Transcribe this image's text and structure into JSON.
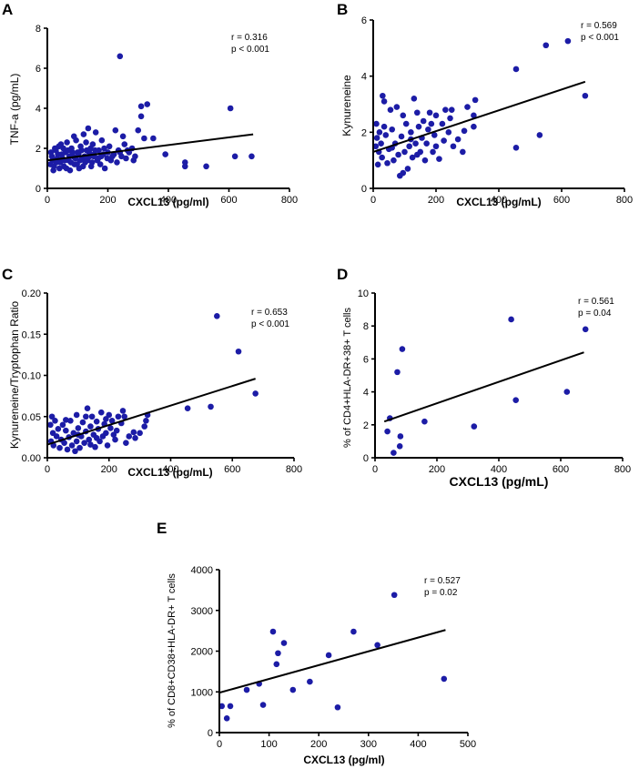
{
  "chart_data": [
    {
      "id": "A",
      "type": "scatter",
      "letter": "A",
      "xlabel": "CXCL13 (pg/ml)",
      "ylabel": "TNF-a (pg/mL)",
      "xlim": [
        0,
        800
      ],
      "ylim": [
        0,
        8
      ],
      "xticks": [
        "0",
        "200",
        "400",
        "600",
        "800"
      ],
      "yticks": [
        "0",
        "2",
        "4",
        "6",
        "8"
      ],
      "xtick_values": [
        0,
        200,
        400,
        600,
        800
      ],
      "ytick_values": [
        0,
        2,
        4,
        6,
        8
      ],
      "stats": {
        "r": "r = 0.316",
        "p": "p < 0.001"
      },
      "fit": {
        "x": [
          0,
          680
        ],
        "y": [
          1.4,
          2.7
        ]
      },
      "points": [
        [
          240,
          6.6
        ],
        [
          330,
          4.2
        ],
        [
          310,
          4.1
        ],
        [
          605,
          4.0
        ],
        [
          310,
          3.6
        ],
        [
          350,
          2.5
        ],
        [
          300,
          2.9
        ],
        [
          250,
          2.6
        ],
        [
          320,
          2.5
        ],
        [
          455,
          1.3
        ],
        [
          455,
          1.1
        ],
        [
          525,
          1.1
        ],
        [
          620,
          1.6
        ],
        [
          675,
          1.6
        ],
        [
          390,
          1.7
        ],
        [
          10,
          1.2
        ],
        [
          15,
          1.6
        ],
        [
          20,
          0.9
        ],
        [
          25,
          2.0
        ],
        [
          30,
          1.3
        ],
        [
          35,
          1.7
        ],
        [
          40,
          1.0
        ],
        [
          45,
          2.2
        ],
        [
          50,
          1.5
        ],
        [
          55,
          1.1
        ],
        [
          60,
          1.8
        ],
        [
          65,
          2.3
        ],
        [
          70,
          1.4
        ],
        [
          75,
          0.9
        ],
        [
          80,
          2.0
        ],
        [
          85,
          1.6
        ],
        [
          90,
          1.2
        ],
        [
          95,
          2.4
        ],
        [
          100,
          1.8
        ],
        [
          105,
          1.0
        ],
        [
          110,
          2.1
        ],
        [
          115,
          1.5
        ],
        [
          120,
          2.7
        ],
        [
          125,
          1.3
        ],
        [
          130,
          1.9
        ],
        [
          135,
          3.0
        ],
        [
          140,
          1.6
        ],
        [
          145,
          1.1
        ],
        [
          150,
          2.2
        ],
        [
          155,
          1.7
        ],
        [
          160,
          2.8
        ],
        [
          165,
          1.4
        ],
        [
          170,
          1.9
        ],
        [
          175,
          1.2
        ],
        [
          180,
          2.4
        ],
        [
          185,
          1.7
        ],
        [
          190,
          1.0
        ],
        [
          200,
          1.8
        ],
        [
          205,
          2.1
        ],
        [
          210,
          1.4
        ],
        [
          220,
          1.7
        ],
        [
          225,
          2.9
        ],
        [
          230,
          1.3
        ],
        [
          235,
          1.9
        ],
        [
          245,
          1.6
        ],
        [
          255,
          2.2
        ],
        [
          260,
          1.5
        ],
        [
          270,
          1.8
        ],
        [
          280,
          2.0
        ],
        [
          290,
          1.6
        ],
        [
          12,
          1.8
        ],
        [
          18,
          1.4
        ],
        [
          22,
          1.1
        ],
        [
          28,
          1.9
        ],
        [
          33,
          1.5
        ],
        [
          38,
          2.1
        ],
        [
          43,
          1.3
        ],
        [
          48,
          1.7
        ],
        [
          53,
          2.0
        ],
        [
          58,
          1.4
        ],
        [
          63,
          1.0
        ],
        [
          68,
          1.9
        ],
        [
          73,
          1.6
        ],
        [
          78,
          1.3
        ],
        [
          83,
          1.8
        ],
        [
          88,
          2.6
        ],
        [
          93,
          1.5
        ],
        [
          98,
          1.2
        ],
        [
          103,
          1.7
        ],
        [
          108,
          1.4
        ],
        [
          113,
          1.9
        ],
        [
          118,
          1.1
        ],
        [
          123,
          1.6
        ],
        [
          128,
          2.3
        ],
        [
          133,
          1.4
        ],
        [
          138,
          1.8
        ],
        [
          143,
          2.0
        ],
        [
          148,
          1.3
        ],
        [
          153,
          1.6
        ],
        [
          158,
          1.9
        ],
        [
          168,
          1.5
        ],
        [
          178,
          1.6
        ],
        [
          188,
          2.0
        ],
        [
          198,
          1.5
        ],
        [
          215,
          1.6
        ],
        [
          240,
          1.8
        ],
        [
          265,
          1.9
        ],
        [
          285,
          1.4
        ]
      ]
    },
    {
      "id": "B",
      "type": "scatter",
      "letter": "B",
      "xlabel": "CXCL13 (pg/mL)",
      "ylabel": "Kynureneine",
      "xlim": [
        0,
        800
      ],
      "ylim": [
        0,
        6
      ],
      "xticks": [
        "0",
        "200",
        "400",
        "600",
        "800"
      ],
      "yticks": [
        "0",
        "2",
        "4",
        "6"
      ],
      "xtick_values": [
        0,
        200,
        400,
        600,
        800
      ],
      "ytick_values": [
        0,
        2,
        4,
        6
      ],
      "stats": {
        "r": "r = 0.569",
        "p": "p < 0.001"
      },
      "fit": {
        "x": [
          0,
          675
        ],
        "y": [
          1.3,
          3.8
        ]
      },
      "points": [
        [
          620,
          5.25
        ],
        [
          550,
          5.1
        ],
        [
          455,
          4.25
        ],
        [
          675,
          3.3
        ],
        [
          530,
          1.9
        ],
        [
          455,
          1.45
        ],
        [
          325,
          3.15
        ],
        [
          320,
          2.6
        ],
        [
          320,
          2.2
        ],
        [
          300,
          2.9
        ],
        [
          290,
          2.05
        ],
        [
          285,
          1.3
        ],
        [
          270,
          1.75
        ],
        [
          250,
          2.8
        ],
        [
          245,
          2.5
        ],
        [
          240,
          2.0
        ],
        [
          230,
          2.8
        ],
        [
          225,
          1.7
        ],
        [
          220,
          2.3
        ],
        [
          210,
          1.05
        ],
        [
          200,
          2.6
        ],
        [
          195,
          1.9
        ],
        [
          190,
          1.3
        ],
        [
          180,
          2.7
        ],
        [
          175,
          2.1
        ],
        [
          170,
          1.6
        ],
        [
          165,
          1.0
        ],
        [
          160,
          2.4
        ],
        [
          155,
          1.8
        ],
        [
          150,
          1.3
        ],
        [
          145,
          2.2
        ],
        [
          140,
          2.7
        ],
        [
          135,
          1.6
        ],
        [
          130,
          3.2
        ],
        [
          125,
          1.1
        ],
        [
          120,
          2.0
        ],
        [
          115,
          1.5
        ],
        [
          110,
          0.7
        ],
        [
          105,
          2.3
        ],
        [
          100,
          1.3
        ],
        [
          95,
          0.55
        ],
        [
          90,
          1.85
        ],
        [
          85,
          0.45
        ],
        [
          80,
          1.2
        ],
        [
          75,
          2.9
        ],
        [
          70,
          1.6
        ],
        [
          65,
          1.0
        ],
        [
          60,
          2.1
        ],
        [
          55,
          2.8
        ],
        [
          50,
          1.4
        ],
        [
          45,
          0.9
        ],
        [
          40,
          1.9
        ],
        [
          35,
          2.2
        ],
        [
          30,
          3.3
        ],
        [
          28,
          1.1
        ],
        [
          25,
          1.6
        ],
        [
          20,
          2.0
        ],
        [
          18,
          1.3
        ],
        [
          15,
          0.85
        ],
        [
          12,
          1.8
        ],
        [
          10,
          2.3
        ],
        [
          8,
          1.5
        ],
        [
          35,
          3.1
        ],
        [
          95,
          2.6
        ],
        [
          140,
          1.2
        ],
        [
          185,
          2.3
        ],
        [
          255,
          1.5
        ],
        [
          200,
          1.5
        ],
        [
          60,
          1.45
        ],
        [
          120,
          1.75
        ]
      ]
    },
    {
      "id": "C",
      "type": "scatter",
      "letter": "C",
      "xlabel": "CXCL13 (pg/mL)",
      "ylabel": "Kynureneine/Tryptophan Ratio",
      "xlim": [
        0,
        800
      ],
      "ylim": [
        0,
        0.2
      ],
      "xticks": [
        "0",
        "200",
        "400",
        "600",
        "800"
      ],
      "yticks": [
        "0.00",
        "0.05",
        "0.10",
        "0.15",
        "0.20"
      ],
      "xtick_values": [
        0,
        200,
        400,
        600,
        800
      ],
      "ytick_values": [
        0,
        0.05,
        0.1,
        0.15,
        0.2
      ],
      "stats": {
        "r": "r = 0.653",
        "p": "p < 0.001"
      },
      "fit": {
        "x": [
          0,
          675
        ],
        "y": [
          0.016,
          0.096
        ]
      },
      "points": [
        [
          550,
          0.172
        ],
        [
          620,
          0.129
        ],
        [
          675,
          0.078
        ],
        [
          530,
          0.062
        ],
        [
          455,
          0.06
        ],
        [
          325,
          0.052
        ],
        [
          320,
          0.045
        ],
        [
          315,
          0.038
        ],
        [
          300,
          0.03
        ],
        [
          285,
          0.024
        ],
        [
          280,
          0.031
        ],
        [
          265,
          0.026
        ],
        [
          255,
          0.018
        ],
        [
          250,
          0.05
        ],
        [
          245,
          0.057
        ],
        [
          240,
          0.042
        ],
        [
          230,
          0.05
        ],
        [
          225,
          0.033
        ],
        [
          220,
          0.022
        ],
        [
          210,
          0.045
        ],
        [
          205,
          0.036
        ],
        [
          200,
          0.052
        ],
        [
          195,
          0.015
        ],
        [
          190,
          0.03
        ],
        [
          185,
          0.041
        ],
        [
          180,
          0.026
        ],
        [
          175,
          0.055
        ],
        [
          170,
          0.02
        ],
        [
          165,
          0.035
        ],
        [
          160,
          0.044
        ],
        [
          155,
          0.013
        ],
        [
          150,
          0.028
        ],
        [
          145,
          0.05
        ],
        [
          140,
          0.038
        ],
        [
          135,
          0.022
        ],
        [
          130,
          0.06
        ],
        [
          125,
          0.032
        ],
        [
          120,
          0.018
        ],
        [
          115,
          0.043
        ],
        [
          110,
          0.026
        ],
        [
          105,
          0.012
        ],
        [
          100,
          0.036
        ],
        [
          95,
          0.02
        ],
        [
          90,
          0.008
        ],
        [
          85,
          0.03
        ],
        [
          80,
          0.015
        ],
        [
          75,
          0.045
        ],
        [
          70,
          0.025
        ],
        [
          65,
          0.01
        ],
        [
          60,
          0.033
        ],
        [
          55,
          0.018
        ],
        [
          50,
          0.04
        ],
        [
          45,
          0.022
        ],
        [
          40,
          0.012
        ],
        [
          35,
          0.035
        ],
        [
          30,
          0.026
        ],
        [
          25,
          0.045
        ],
        [
          20,
          0.015
        ],
        [
          18,
          0.03
        ],
        [
          15,
          0.05
        ],
        [
          12,
          0.02
        ],
        [
          10,
          0.04
        ],
        [
          95,
          0.052
        ],
        [
          125,
          0.05
        ],
        [
          160,
          0.024
        ],
        [
          190,
          0.047
        ],
        [
          215,
          0.028
        ],
        [
          60,
          0.046
        ],
        [
          100,
          0.028
        ],
        [
          140,
          0.016
        ]
      ]
    },
    {
      "id": "D",
      "type": "scatter",
      "letter": "D",
      "xlabel": "CXCL13 (pg/mL)",
      "ylabel": "% of CD4+HLA-DR+38+ T cells",
      "xlim": [
        0,
        800
      ],
      "ylim": [
        0,
        10
      ],
      "xticks": [
        "0",
        "200",
        "400",
        "600",
        "800"
      ],
      "yticks": [
        "0",
        "2",
        "4",
        "6",
        "8",
        "10"
      ],
      "xtick_values": [
        0,
        200,
        400,
        600,
        800
      ],
      "ytick_values": [
        0,
        2,
        4,
        6,
        8,
        10
      ],
      "stats": {
        "r": "r = 0.561",
        "p": "p = 0.04"
      },
      "fit": {
        "x": [
          30,
          675
        ],
        "y": [
          2.2,
          6.4
        ]
      },
      "points": [
        [
          88,
          6.6
        ],
        [
          72,
          5.2
        ],
        [
          40,
          1.6
        ],
        [
          48,
          2.4
        ],
        [
          60,
          0.3
        ],
        [
          82,
          1.3
        ],
        [
          80,
          0.7
        ],
        [
          160,
          2.2
        ],
        [
          320,
          1.9
        ],
        [
          440,
          8.4
        ],
        [
          455,
          3.5
        ],
        [
          620,
          4.0
        ],
        [
          680,
          7.8
        ]
      ]
    },
    {
      "id": "E",
      "type": "scatter",
      "letter": "E",
      "xlabel": "CXCL13 (pg/ml)",
      "ylabel": "% of CD8+CD38+HLA-DR+ T cells",
      "xlim": [
        0,
        500
      ],
      "ylim": [
        0,
        4000
      ],
      "xticks": [
        "0",
        "100",
        "200",
        "300",
        "400",
        "500"
      ],
      "yticks": [
        "0",
        "1000",
        "2000",
        "3000",
        "4000"
      ],
      "xtick_values": [
        0,
        100,
        200,
        300,
        400,
        500
      ],
      "ytick_values": [
        0,
        1000,
        2000,
        3000,
        4000
      ],
      "stats": {
        "r": "r = 0.527",
        "p": "p = 0.02"
      },
      "fit": {
        "x": [
          0,
          455
        ],
        "y": [
          980,
          2520
        ]
      },
      "points": [
        [
          5,
          650
        ],
        [
          15,
          350
        ],
        [
          22,
          650
        ],
        [
          55,
          1050
        ],
        [
          80,
          1200
        ],
        [
          88,
          680
        ],
        [
          108,
          2480
        ],
        [
          115,
          1680
        ],
        [
          118,
          1950
        ],
        [
          130,
          2200
        ],
        [
          148,
          1050
        ],
        [
          182,
          1250
        ],
        [
          220,
          1900
        ],
        [
          238,
          620
        ],
        [
          270,
          2480
        ],
        [
          318,
          2150
        ],
        [
          352,
          3380
        ],
        [
          452,
          1320
        ]
      ]
    }
  ]
}
